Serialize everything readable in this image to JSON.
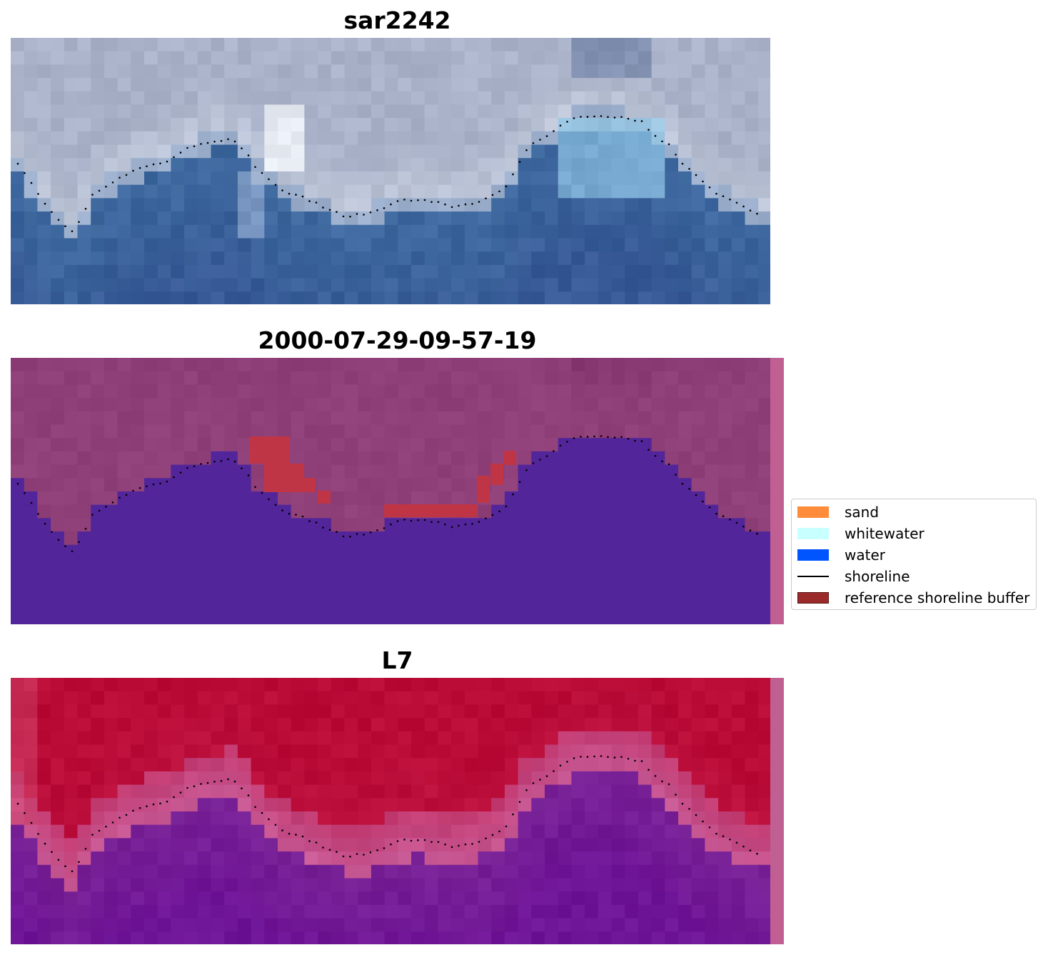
{
  "panels": [
    {
      "title": "sar2242",
      "style": "rgb"
    },
    {
      "title": "2000-07-29-09-57-19",
      "style": "classified"
    },
    {
      "title": "L7",
      "style": "index"
    }
  ],
  "legend": {
    "items": [
      {
        "label": "sand",
        "color": "#ff8c3a",
        "kind": "patch"
      },
      {
        "label": "whitewater",
        "color": "#c8ffff",
        "kind": "patch"
      },
      {
        "label": "water",
        "color": "#0055ff",
        "kind": "patch"
      },
      {
        "label": "shoreline",
        "color": "#000000",
        "kind": "line"
      },
      {
        "label": "reference shoreline buffer",
        "color": "#9b2a2a",
        "kind": "patch"
      }
    ]
  },
  "colors": {
    "rgb_sky": "#a9b2c8",
    "rgb_sea": "#3f6aa0",
    "class_land": "#8f4078",
    "class_water": "#52259a",
    "class_buffer": "#c03545",
    "index_red": "#b90b36",
    "index_purple": "#7a2496",
    "side_strip": "#c06092"
  }
}
